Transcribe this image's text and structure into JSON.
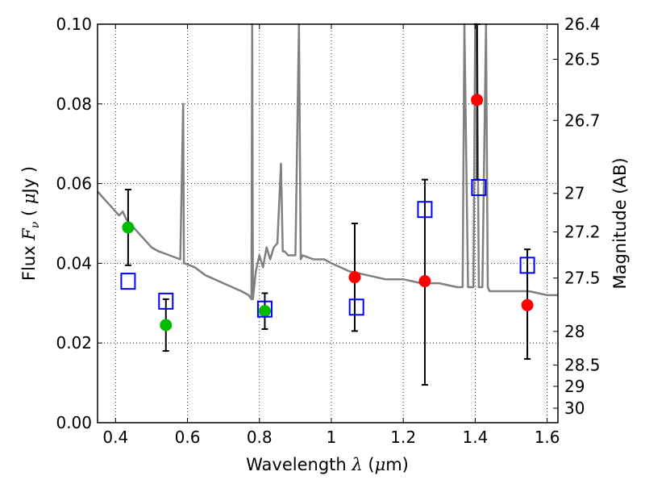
{
  "chart_data": {
    "type": "scatter",
    "xlabel": {
      "prefix": "Wavelength ",
      "symbol": "λ",
      "unit_open": " (",
      "unit_mu": "μ",
      "unit_rest": "m)"
    },
    "ylabel": {
      "prefix": "Flux ",
      "symbol": "F",
      "subscript": "ν",
      "unit_open": " ( ",
      "unit_mu": "μ",
      "unit_rest": "Jy )"
    },
    "y2label": "Magnitude (AB)",
    "xlim": [
      0.35,
      1.63
    ],
    "ylim": [
      0.0,
      0.1
    ],
    "x_ticks": [
      0.4,
      0.6,
      0.8,
      1.0,
      1.2,
      1.4,
      1.6
    ],
    "x_tick_labels": [
      "0.4",
      "0.6",
      "0.8",
      "1",
      "1.2",
      "1.4",
      "1.6"
    ],
    "y_ticks": [
      0.0,
      0.02,
      0.04,
      0.06,
      0.08,
      0.1
    ],
    "y_tick_labels": [
      "0.00",
      "0.02",
      "0.04",
      "0.06",
      "0.08",
      "0.10"
    ],
    "y2_ticks": [
      26.4,
      26.5,
      26.7,
      27,
      27.2,
      27.5,
      28,
      28.5,
      29,
      30
    ],
    "y2_tick_labels": [
      "26.4",
      "26.5",
      "26.7",
      "27",
      "27.2",
      "27.5",
      "28",
      "28.5",
      "29",
      "30"
    ],
    "grid": true,
    "series": [
      {
        "kind": "model_spectrum",
        "color": "#808080",
        "x": [
          0.35,
          0.36,
          0.37,
          0.38,
          0.39,
          0.4,
          0.41,
          0.42,
          0.43,
          0.44,
          0.45,
          0.46,
          0.47,
          0.48,
          0.49,
          0.5,
          0.52,
          0.55,
          0.58,
          0.588,
          0.59,
          0.592,
          0.62,
          0.65,
          0.7,
          0.75,
          0.77,
          0.778,
          0.78,
          0.782,
          0.79,
          0.8,
          0.81,
          0.82,
          0.83,
          0.84,
          0.85,
          0.86,
          0.865,
          0.87,
          0.88,
          0.9,
          0.91,
          0.915,
          0.92,
          0.95,
          0.98,
          1.0,
          1.05,
          1.1,
          1.15,
          1.2,
          1.25,
          1.3,
          1.35,
          1.36,
          1.365,
          1.37,
          1.38,
          1.39,
          1.395,
          1.4,
          1.405,
          1.41,
          1.42,
          1.43,
          1.435,
          1.44,
          1.5,
          1.55,
          1.6,
          1.63
        ],
        "y": [
          0.058,
          0.057,
          0.056,
          0.055,
          0.054,
          0.053,
          0.052,
          0.053,
          0.051,
          0.05,
          0.049,
          0.048,
          0.047,
          0.046,
          0.045,
          0.044,
          0.043,
          0.042,
          0.041,
          0.08,
          0.04,
          0.04,
          0.039,
          0.037,
          0.035,
          0.033,
          0.032,
          0.031,
          0.1,
          0.031,
          0.038,
          0.042,
          0.039,
          0.044,
          0.041,
          0.044,
          0.045,
          0.065,
          0.043,
          0.043,
          0.042,
          0.042,
          0.1,
          0.041,
          0.042,
          0.041,
          0.041,
          0.04,
          0.038,
          0.037,
          0.036,
          0.036,
          0.035,
          0.035,
          0.034,
          0.034,
          0.034,
          0.1,
          0.034,
          0.034,
          0.034,
          0.1,
          0.1,
          0.034,
          0.034,
          0.1,
          0.034,
          0.033,
          0.033,
          0.033,
          0.032,
          0.032
        ]
      },
      {
        "kind": "observed_green",
        "color": "#00bb00",
        "points": [
          {
            "x": 0.435,
            "y": 0.049,
            "err_lo": 0.0395,
            "err_hi": 0.0585
          },
          {
            "x": 0.54,
            "y": 0.0245,
            "err_lo": 0.018,
            "err_hi": 0.031
          },
          {
            "x": 0.815,
            "y": 0.028,
            "err_lo": 0.0235,
            "err_hi": 0.0325
          }
        ]
      },
      {
        "kind": "observed_red",
        "color": "#ff0000",
        "points": [
          {
            "x": 1.065,
            "y": 0.0365,
            "err_lo": 0.023,
            "err_hi": 0.05
          },
          {
            "x": 1.26,
            "y": 0.0355,
            "err_lo": 0.0095,
            "err_hi": 0.061
          },
          {
            "x": 1.405,
            "y": 0.081,
            "err_lo": 0.061,
            "err_hi": 0.1
          },
          {
            "x": 1.545,
            "y": 0.0295,
            "err_lo": 0.016,
            "err_hi": 0.0435
          }
        ]
      },
      {
        "kind": "model_bandpass",
        "color": "#0000ff",
        "points": [
          {
            "x": 0.435,
            "y": 0.0355
          },
          {
            "x": 0.54,
            "y": 0.0305
          },
          {
            "x": 0.815,
            "y": 0.0285
          },
          {
            "x": 1.07,
            "y": 0.029
          },
          {
            "x": 1.26,
            "y": 0.0535
          },
          {
            "x": 1.41,
            "y": 0.059
          },
          {
            "x": 1.545,
            "y": 0.0395
          }
        ]
      }
    ]
  }
}
